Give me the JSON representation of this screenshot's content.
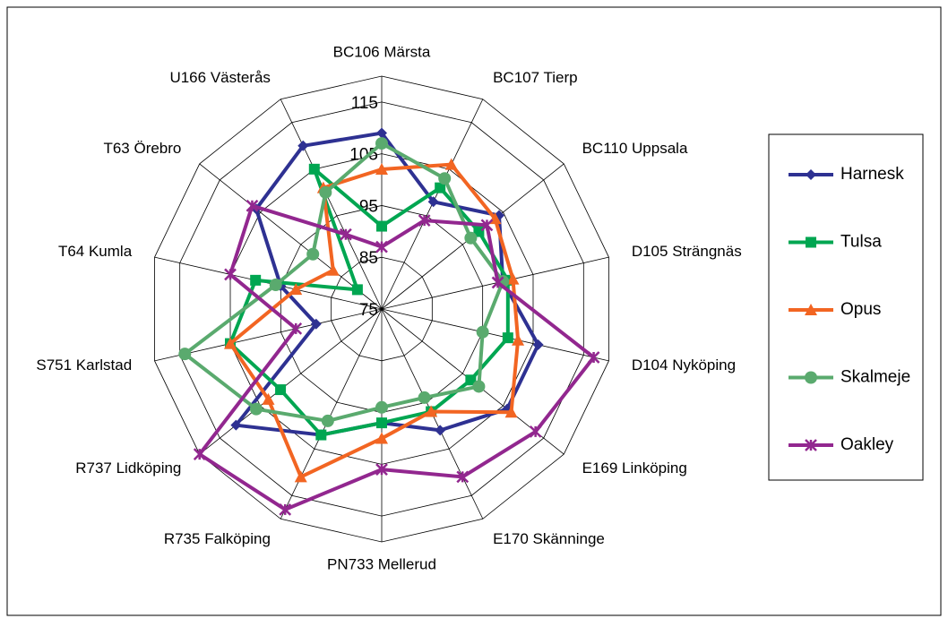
{
  "chart_data": {
    "type": "radar",
    "categories": [
      "BC106 Märsta",
      "BC107 Tierp",
      "BC110 Uppsala",
      "D105 Strängnäs",
      "D104 Nyköping",
      "E169 Linköping",
      "E170 Skänninge",
      "PN733 Mellerud",
      "R735 Falköping",
      "R737 Lidköping",
      "S751 Karlstad",
      "T64 Kumla",
      "T63 Örebro",
      "U166 Västerås"
    ],
    "ylim": [
      75,
      120
    ],
    "yticks": [
      75,
      85,
      95,
      105,
      115
    ],
    "grid": true,
    "series": [
      {
        "name": "Harnesk",
        "color": "#2e3192",
        "marker": "diamond",
        "values": [
          109,
          98,
          104,
          99,
          106,
          106,
          101,
          97,
          102,
          111,
          88,
          95,
          106,
          110
        ]
      },
      {
        "name": "Tulsa",
        "color": "#00a651",
        "marker": "square",
        "values": [
          91,
          101,
          99,
          100,
          100,
          97,
          97,
          97,
          102,
          100,
          105,
          100,
          81,
          105
        ]
      },
      {
        "name": "Opus",
        "color": "#f26522",
        "marker": "triangle",
        "values": [
          102,
          106,
          103,
          101,
          102,
          107,
          97,
          100,
          111,
          103,
          105,
          92,
          87,
          101
        ]
      },
      {
        "name": "Skalmeje",
        "color": "#5aaa6e",
        "marker": "circle",
        "values": [
          107,
          103,
          97,
          99,
          95,
          99,
          94,
          94,
          99,
          106,
          114,
          96,
          92,
          100
        ]
      },
      {
        "name": "Oakley",
        "color": "#92278f",
        "marker": "star",
        "values": [
          87,
          94,
          101,
          98,
          117,
          113,
          111,
          106,
          118,
          120,
          92,
          105,
          107,
          91
        ]
      }
    ]
  }
}
